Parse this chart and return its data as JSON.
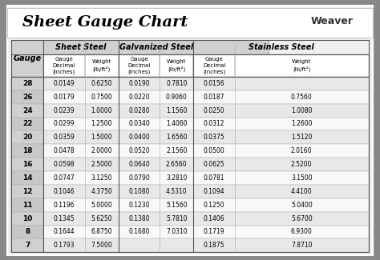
{
  "title": "Sheet Gauge Chart",
  "bg_outer": "#888888",
  "bg_inner": "#f0f0f0",
  "header_bg": "#d0d0d0",
  "row_bg_odd": "#e8e8e8",
  "row_bg_even": "#f8f8f8",
  "gauge_col_bg": "#d0d0d0",
  "section_headers": [
    "Sheet Steel",
    "Galvanized Steel",
    "Stainless Steel"
  ],
  "col_sub_headers": [
    "Gauge\nDecimal\n(inches)",
    "Weight\n(lb/ft²)",
    "Gauge\nDecimal\n(inches)",
    "Weight\n(lb/ft²)",
    "Gauge\nDecimal\n(inches)",
    "Weight\n(lb/ft²)"
  ],
  "gauges": [
    28,
    26,
    24,
    22,
    20,
    18,
    16,
    14,
    12,
    11,
    10,
    8,
    7
  ],
  "sheet_steel": [
    [
      "0.0149",
      "0.6250"
    ],
    [
      "0.0179",
      "0.7500"
    ],
    [
      "0.0239",
      "1.0000"
    ],
    [
      "0.0299",
      "1.2500"
    ],
    [
      "0.0359",
      "1.5000"
    ],
    [
      "0.0478",
      "2.0000"
    ],
    [
      "0.0598",
      "2.5000"
    ],
    [
      "0.0747",
      "3.1250"
    ],
    [
      "0.1046",
      "4.3750"
    ],
    [
      "0.1196",
      "5.0000"
    ],
    [
      "0.1345",
      "5.6250"
    ],
    [
      "0.1644",
      "6.8750"
    ],
    [
      "0.1793",
      "7.5000"
    ]
  ],
  "galvanized_steel": [
    [
      "0.0190",
      "0.7810"
    ],
    [
      "0.0220",
      "0.9060"
    ],
    [
      "0.0280",
      "1.1560"
    ],
    [
      "0.0340",
      "1.4060"
    ],
    [
      "0.0400",
      "1.6560"
    ],
    [
      "0.0520",
      "2.1560"
    ],
    [
      "0.0640",
      "2.6560"
    ],
    [
      "0.0790",
      "3.2810"
    ],
    [
      "0.1080",
      "4.5310"
    ],
    [
      "0.1230",
      "5.1560"
    ],
    [
      "0.1380",
      "5.7810"
    ],
    [
      "0.1680",
      "7.0310"
    ],
    [
      "",
      ""
    ]
  ],
  "stainless_steel": [
    [
      "0.0156",
      ""
    ],
    [
      "0.0187",
      "0.7560"
    ],
    [
      "0.0250",
      "1.0080"
    ],
    [
      "0.0312",
      "1.2600"
    ],
    [
      "0.0375",
      "1.5120"
    ],
    [
      "0.0500",
      "2.0160"
    ],
    [
      "0.0625",
      "2.5200"
    ],
    [
      "0.0781",
      "3.1500"
    ],
    [
      "0.1094",
      "4.4100"
    ],
    [
      "0.1250",
      "5.0400"
    ],
    [
      "0.1406",
      "5.6700"
    ],
    [
      "0.1719",
      "6.9300"
    ],
    [
      "0.1875",
      "7.8710"
    ]
  ]
}
